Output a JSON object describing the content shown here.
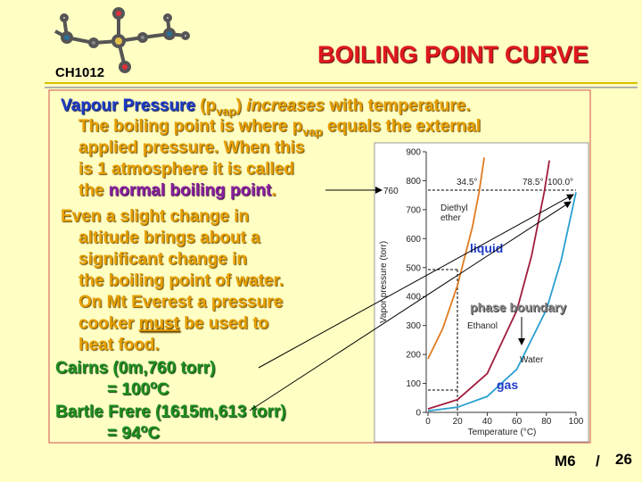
{
  "slide": {
    "course": "CH1012",
    "title": "BOILING POINT CURVE",
    "lines": [
      [
        "Vapour Pressure",
        " (p",
        "vap",
        ")  ",
        "increases",
        " with temperature."
      ],
      [
        "The boiling point is where p",
        "vap",
        " equals the external"
      ],
      [
        "applied pressure. When this"
      ],
      [
        "is 1 atmosphere it is called"
      ],
      [
        "the ",
        "normal boiling point",
        "."
      ],
      [
        "Even a slight change in"
      ],
      [
        "altitude brings about a"
      ],
      [
        "significant change in"
      ],
      [
        "the boiling point of water."
      ],
      [
        "On Mt Everest a pressure"
      ],
      [
        "cooker ",
        "must",
        " be used to"
      ],
      [
        "heat food."
      ],
      [
        "Cairns (0m,760 torr)"
      ],
      [
        "= 100",
        "o",
        "C"
      ],
      [
        "Bartle Frere (1615m,613 torr)"
      ],
      [
        "= 94",
        "o",
        "C"
      ]
    ],
    "footer": {
      "module": "M6",
      "separator": "/",
      "page": "26"
    }
  },
  "chart_data": {
    "type": "line",
    "xlabel": "Temperature (°C)",
    "ylabel": "Vapor pressure (torr)",
    "xlim": [
      0,
      100
    ],
    "ylim": [
      0,
      900
    ],
    "xticks": [
      0,
      20,
      40,
      60,
      80,
      100
    ],
    "yticks": [
      0,
      100,
      200,
      300,
      400,
      500,
      600,
      700,
      800,
      900
    ],
    "series": [
      {
        "name": "Diethyl ether",
        "color": "#e07a20",
        "x": [
          0,
          10,
          20,
          30,
          34.5,
          38
        ],
        "values": [
          185,
          290,
          440,
          640,
          760,
          880
        ]
      },
      {
        "name": "Ethanol",
        "color": "#a01c3c",
        "x": [
          0,
          20,
          40,
          60,
          70,
          78.5,
          82
        ],
        "values": [
          12,
          44,
          134,
          352,
          541,
          760,
          870
        ]
      },
      {
        "name": "Water",
        "color": "#2a9fd0",
        "x": [
          0,
          20,
          40,
          60,
          80,
          90,
          100
        ],
        "values": [
          5,
          18,
          55,
          149,
          355,
          526,
          760
        ]
      }
    ],
    "annotations": [
      "760",
      "34.5°",
      "78.5°",
      "100.0°",
      "liquid",
      "phase boundary",
      "gas"
    ]
  }
}
